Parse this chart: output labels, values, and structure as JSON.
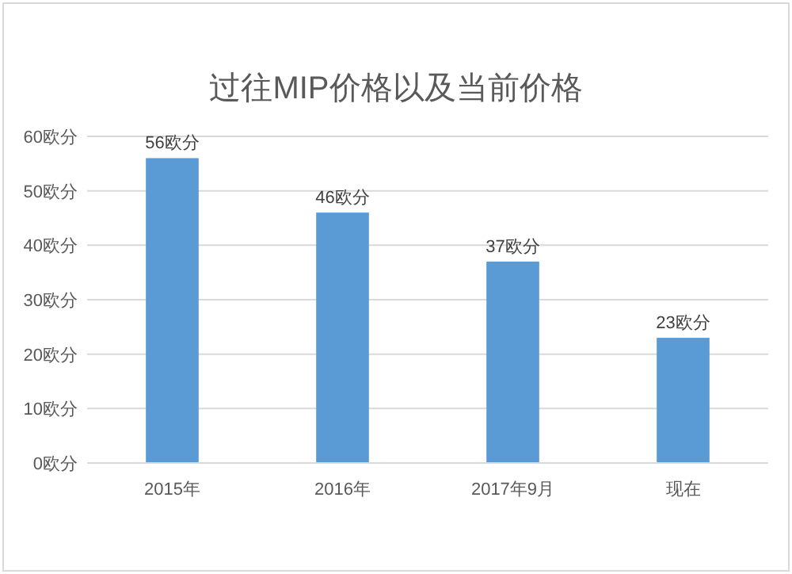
{
  "chart_data": {
    "type": "bar",
    "title": "过往MIP价格以及当前价格",
    "categories": [
      "2015年",
      "2016年",
      "2017年9月",
      "现在"
    ],
    "values": [
      56,
      46,
      37,
      23
    ],
    "value_labels": [
      "56欧分",
      "46欧分",
      "37欧分",
      "23欧分"
    ],
    "color": "#5b9bd5",
    "ylim": [
      0,
      60
    ],
    "yticks": [
      {
        "value": 0,
        "label": "0欧分"
      },
      {
        "value": 10,
        "label": "10欧分"
      },
      {
        "value": 20,
        "label": "20欧分"
      },
      {
        "value": 30,
        "label": "30欧分"
      },
      {
        "value": 40,
        "label": "40欧分"
      },
      {
        "value": 50,
        "label": "50欧分"
      },
      {
        "value": 60,
        "label": "60欧分"
      }
    ],
    "grid": "y"
  }
}
